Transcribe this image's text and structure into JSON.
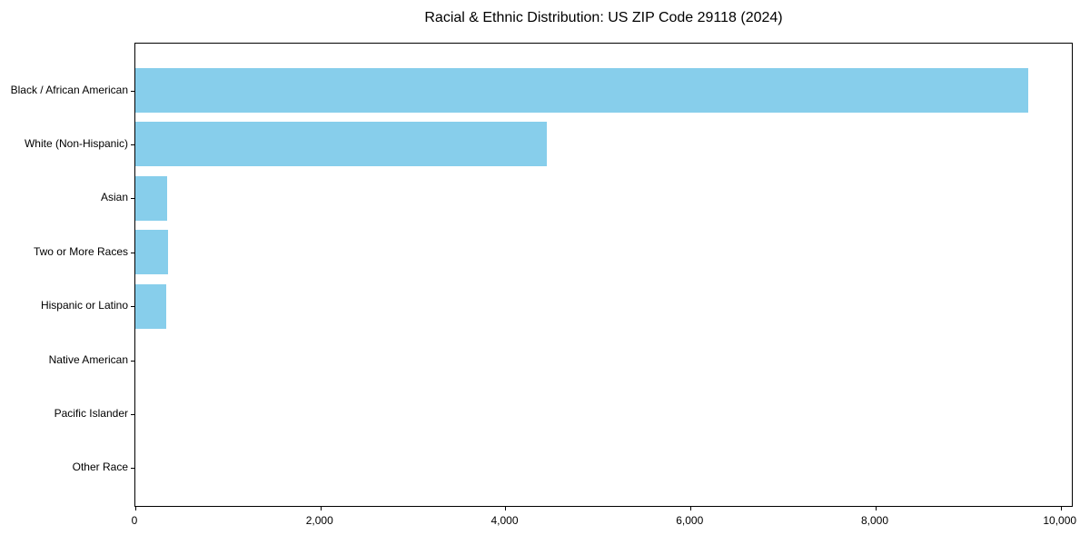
{
  "chart_data": {
    "type": "bar",
    "orientation": "horizontal",
    "title": "Racial & Ethnic Distribution: US ZIP Code 29118 (2024)",
    "categories": [
      "Black / African American",
      "White (Non-Hispanic)",
      "Asian",
      "Two or More Races",
      "Hispanic or Latino",
      "Native American",
      "Pacific Islander",
      "Other Race"
    ],
    "values": [
      9645,
      4443,
      346,
      356,
      337,
      0,
      0,
      0
    ],
    "xlabel": "",
    "ylabel": "",
    "xlim": [
      0,
      10140
    ],
    "x_ticks": [
      {
        "value": 0,
        "label": "0"
      },
      {
        "value": 2000,
        "label": "2,000"
      },
      {
        "value": 4000,
        "label": "4,000"
      },
      {
        "value": 6000,
        "label": "6,000"
      },
      {
        "value": 8000,
        "label": "8,000"
      },
      {
        "value": 10000,
        "label": "10,000"
      }
    ],
    "bar_color": "#87CEEB",
    "axis_color": "#000000",
    "background_color": "#FFFFFF",
    "grid": false,
    "legend": null
  }
}
